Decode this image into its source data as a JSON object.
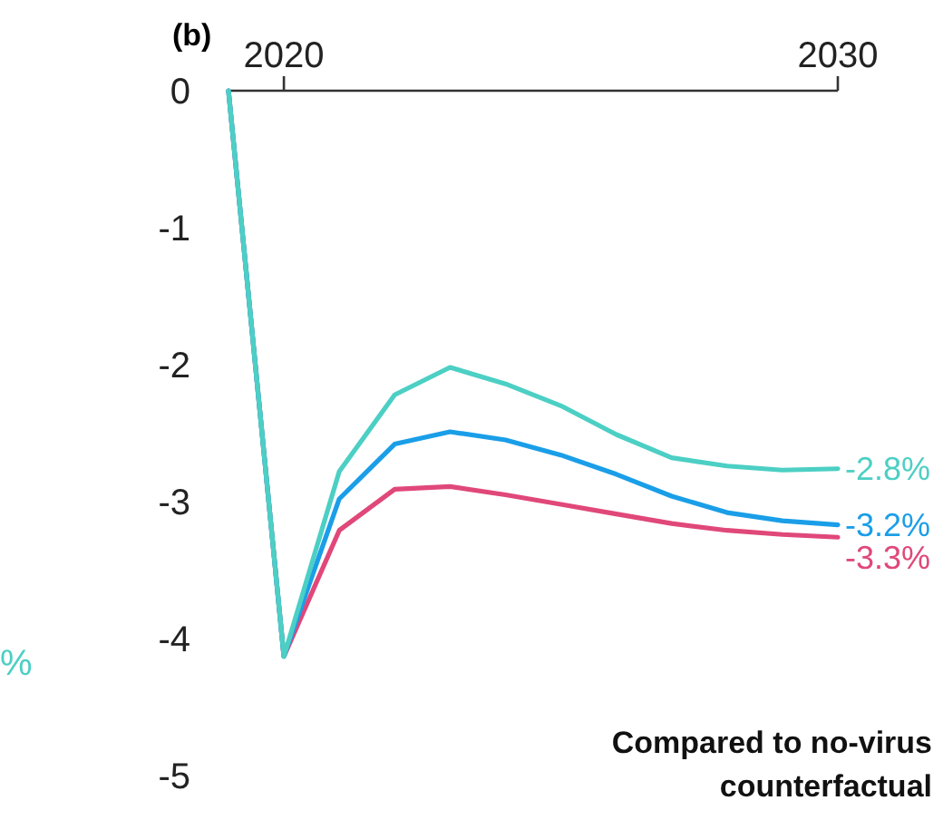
{
  "chart_data": {
    "type": "line",
    "title": "(b)",
    "x": [
      2019,
      2020,
      2021,
      2022,
      2023,
      2024,
      2025,
      2026,
      2027,
      2028,
      2029,
      2030
    ],
    "series": [
      {
        "color": "#e0487a",
        "values": [
          0,
          -4.13,
          -3.21,
          -2.91,
          -2.89,
          -2.95,
          -3.02,
          -3.09,
          -3.16,
          -3.21,
          -3.24,
          -3.26
        ],
        "value_labels": [
          null,
          null,
          null,
          null,
          null,
          null,
          null,
          null,
          null,
          null,
          null,
          "-3.3%"
        ]
      },
      {
        "color": "#1a9ee8",
        "values": [
          0,
          -4.13,
          -2.98,
          -2.58,
          -2.49,
          -2.55,
          -2.66,
          -2.8,
          -2.96,
          -3.08,
          -3.14,
          -3.17
        ],
        "value_labels": [
          null,
          null,
          null,
          null,
          null,
          null,
          null,
          null,
          null,
          null,
          null,
          "-3.2%"
        ]
      },
      {
        "color": "#4ccfc4",
        "values": [
          0,
          -4.13,
          -2.78,
          -2.22,
          -2.02,
          -2.14,
          -2.3,
          -2.51,
          -2.68,
          -2.74,
          -2.77,
          -2.76
        ],
        "value_labels": [
          null,
          null,
          null,
          null,
          null,
          null,
          null,
          null,
          null,
          null,
          null,
          "-2.8%"
        ]
      }
    ],
    "xlim": [
      2019,
      2030
    ],
    "xticks": [
      2020,
      2030
    ],
    "ylim": [
      -5,
      0
    ],
    "yticks": [
      0,
      -1,
      -2,
      -3,
      -4,
      -5
    ],
    "grid": false,
    "marker": "none",
    "line_style": "solid",
    "annotations": [
      "Compared to no-virus counterfactual",
      "%"
    ]
  }
}
